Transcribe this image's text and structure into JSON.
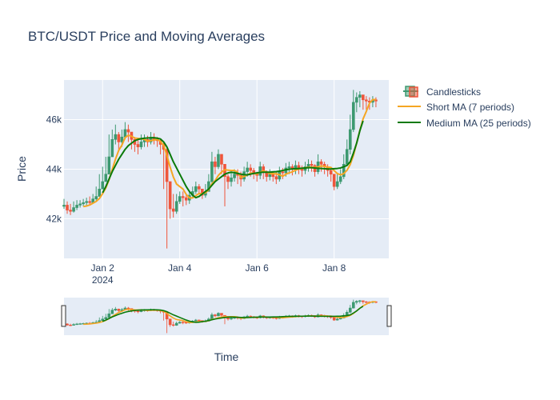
{
  "colors": {
    "plot_bg": "#e5ecf6",
    "grid": "#ffffff",
    "increasing": "#3d9970",
    "decreasing": "#ef553b",
    "short_ma": "#f5a623",
    "medium_ma": "#0a7a0a",
    "text": "#2a3f5f"
  },
  "chart_data": {
    "type": "candlestick",
    "title": "BTC/USDT Price and Moving Averages",
    "xlabel": "Time",
    "ylabel": "Price",
    "xlim": [
      "2024-01-01T00:00",
      "2024-01-09T10:00"
    ],
    "ylim": [
      40400,
      47600
    ],
    "yticks": [
      42000,
      44000,
      46000
    ],
    "ytick_labels": [
      "42k",
      "44k",
      "46k"
    ],
    "xticks": [
      "2024-01-02",
      "2024-01-04",
      "2024-01-06",
      "2024-01-08"
    ],
    "xtick_labels": [
      "Jan 2",
      "Jan 4",
      "Jan 6",
      "Jan 8"
    ],
    "xtick_year_label": "2024",
    "grid": true,
    "legend_position": "top-right",
    "legend": [
      "Candlesticks",
      "Short MA (7 periods)",
      "Medium MA (25 periods)"
    ],
    "rangeslider": true,
    "interval_hours": 2,
    "candles": {
      "start": "2024-01-01T00:00",
      "close": [
        42550,
        42350,
        42300,
        42450,
        42550,
        42600,
        42650,
        42700,
        42650,
        42800,
        42900,
        43200,
        43500,
        43800,
        44500,
        45200,
        45400,
        45100,
        45300,
        45600,
        45500,
        45200,
        45000,
        44900,
        45100,
        45200,
        45100,
        45250,
        45200,
        45150,
        45000,
        44800,
        43500,
        42400,
        42300,
        42700,
        42900,
        42850,
        42750,
        42950,
        43100,
        43300,
        43200,
        42950,
        43100,
        43500,
        44300,
        44100,
        44600,
        44200,
        43700,
        43500,
        43650,
        43800,
        43750,
        43600,
        43900,
        44050,
        43950,
        43800,
        43750,
        44100,
        43900,
        43700,
        43800,
        43700,
        43600,
        43900,
        43850,
        44050,
        44100,
        44000,
        44150,
        44050,
        43950,
        44100,
        44200,
        44150,
        43900,
        44300,
        44200,
        44100,
        43950,
        43800,
        43300,
        43500,
        43700,
        44200,
        44800,
        45600,
        46700,
        46900,
        47000,
        46800,
        46750,
        46700,
        46800,
        46750
      ],
      "high": [
        42800,
        42700,
        42600,
        42700,
        42750,
        42750,
        42800,
        42850,
        42900,
        43000,
        43300,
        43800,
        44100,
        44500,
        45400,
        45600,
        45800,
        45500,
        45600,
        45900,
        45800,
        45500,
        45300,
        45200,
        45400,
        45400,
        45350,
        45500,
        45450,
        45300,
        45200,
        45100,
        44900,
        43000,
        43000,
        43000,
        43100,
        43100,
        43000,
        43100,
        43300,
        43500,
        43400,
        43200,
        43400,
        43800,
        44700,
        44500,
        44800,
        44600,
        44100,
        43800,
        43900,
        44000,
        44000,
        43900,
        44100,
        44300,
        44200,
        44050,
        43900,
        44300,
        44200,
        43950,
        44000,
        43900,
        43900,
        44100,
        44050,
        44250,
        44300,
        44200,
        44350,
        44300,
        44150,
        44300,
        44400,
        44350,
        44200,
        44600,
        44400,
        44300,
        44200,
        44000,
        43700,
        43800,
        44000,
        44600,
        45200,
        46200,
        47200,
        47100,
        47150,
        47000,
        46950,
        46900,
        46950,
        46900
      ],
      "low": [
        42400,
        42200,
        42150,
        42250,
        42350,
        42450,
        42500,
        42550,
        42550,
        42650,
        42700,
        42900,
        43200,
        43500,
        43900,
        44800,
        45000,
        44800,
        44900,
        45200,
        45100,
        44800,
        44700,
        44600,
        44800,
        44900,
        44900,
        45000,
        45000,
        44900,
        44600,
        43200,
        40800,
        42000,
        42050,
        42200,
        42600,
        42500,
        42550,
        42600,
        42850,
        43000,
        43000,
        42800,
        42850,
        43100,
        43400,
        43800,
        44000,
        43800,
        42500,
        43200,
        43300,
        43500,
        43400,
        43300,
        43500,
        43700,
        43700,
        43600,
        43500,
        43600,
        43600,
        43500,
        43550,
        43500,
        43400,
        43500,
        43600,
        43700,
        43800,
        43750,
        43800,
        43800,
        43700,
        43800,
        43900,
        43900,
        43700,
        43800,
        43900,
        43800,
        43700,
        43500,
        43150,
        43200,
        43400,
        43600,
        44200,
        44600,
        45500,
        46300,
        46500,
        46400,
        46400,
        46400,
        46500,
        46500
      ]
    },
    "series": [
      {
        "name": "Short MA (7 periods)",
        "values": [
          null,
          null,
          null,
          null,
          null,
          null,
          42490,
          42514,
          42557,
          42629,
          42700,
          42817,
          43014,
          43243,
          43571,
          43989,
          44400,
          44757,
          44971,
          45271,
          45371,
          45329,
          45257,
          45243,
          45231,
          45200,
          45136,
          45154,
          45179,
          45200,
          45120,
          44960,
          44557,
          44086,
          43686,
          43400,
          43300,
          43200,
          42986,
          42843,
          42843,
          42936,
          43019,
          43014,
          43050,
          43171,
          43414,
          43543,
          43750,
          43883,
          43979,
          43964,
          43950,
          43950,
          43871,
          43671,
          43709,
          43763,
          43846,
          43836,
          43807,
          43879,
          43936,
          43886,
          43819,
          43821,
          43810,
          43779,
          43714,
          43799,
          43854,
          43894,
          43957,
          44007,
          44029,
          44057,
          44079,
          44086,
          44071,
          44093,
          44133,
          44114,
          44086,
          44074,
          43943,
          43823,
          43773,
          43823,
          43957,
          44189,
          44557,
          45050,
          45566,
          46029,
          46331,
          46664,
          46807,
          46807
        ]
      },
      {
        "name": "Medium MA (25 periods)",
        "start_index": 12,
        "values": [
          43050,
          43300,
          43600,
          43900,
          44150,
          44400,
          44600,
          44800,
          44950,
          45050,
          45150,
          45200,
          45230,
          45250,
          45260,
          45270,
          45270,
          45250,
          45220,
          45100,
          44900,
          44600,
          44300,
          44050,
          43800,
          43550,
          43300,
          43100,
          42950,
          42850,
          42900,
          43000,
          43100,
          43200,
          43350,
          43500,
          43600,
          43700,
          43800,
          43850,
          43880,
          43860,
          43830,
          43800,
          43780,
          43770,
          43800,
          43830,
          43850,
          43870,
          43880,
          43880,
          43880,
          43890,
          43900,
          43920,
          43950,
          43980,
          44000,
          44010,
          44020,
          44030,
          44040,
          44050,
          44060,
          44060,
          44050,
          44040,
          44030,
          44020,
          44010,
          44010,
          44020,
          44030,
          44050,
          44100,
          44150,
          44300,
          44650,
          45050,
          45550,
          45950
        ]
      }
    ]
  }
}
